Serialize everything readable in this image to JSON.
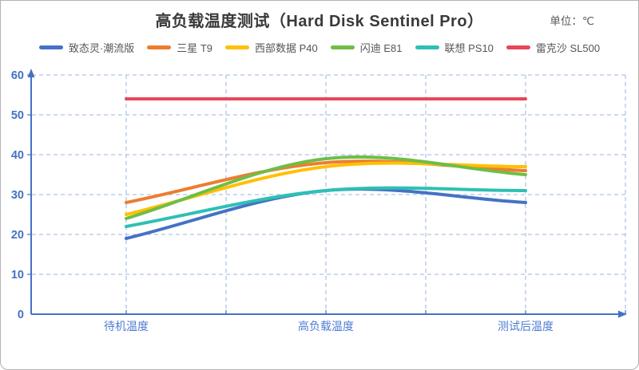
{
  "title": "高负载温度测试（Hard Disk Sentinel Pro）",
  "unit_label": "单位：℃",
  "legend": [
    {
      "label": "致态灵·潮流版",
      "color": "#4472C4"
    },
    {
      "label": "三星 T9",
      "color": "#ED7D31"
    },
    {
      "label": "西部数据 P40",
      "color": "#FFC000"
    },
    {
      "label": "闪迪 E81",
      "color": "#6EBE46"
    },
    {
      "label": "联想 PS10",
      "color": "#2EC0B4"
    },
    {
      "label": "雷克沙 SL500",
      "color": "#E8475A"
    }
  ],
  "chart_data": {
    "type": "line",
    "title": "高负载温度测试（Hard Disk Sentinel Pro）",
    "unit": "℃",
    "categories": [
      "待机温度",
      "高负载温度",
      "测试后温度"
    ],
    "series": [
      {
        "name": "致态灵·潮流版",
        "color": "#4472C4",
        "values": [
          19,
          31,
          28
        ]
      },
      {
        "name": "三星 T9",
        "color": "#ED7D31",
        "values": [
          28,
          38,
          36
        ]
      },
      {
        "name": "西部数据 P40",
        "color": "#FFC000",
        "values": [
          25,
          37,
          37
        ]
      },
      {
        "name": "闪迪 E81",
        "color": "#6EBE46",
        "values": [
          24,
          39,
          35
        ]
      },
      {
        "name": "联想 PS10",
        "color": "#2EC0B4",
        "values": [
          22,
          31,
          31
        ]
      },
      {
        "name": "雷克沙 SL500",
        "color": "#E8475A",
        "values": [
          54,
          54,
          54
        ]
      }
    ],
    "ylim": [
      0,
      60
    ],
    "yticks": [
      0,
      10,
      20,
      30,
      40,
      50,
      60
    ],
    "grid": "dashed",
    "curve": "smooth",
    "legend_position": "top",
    "axis_color": "#4472C4",
    "gridline_color": "#AFC4E8",
    "category_label_color": "#4E7DD4"
  }
}
